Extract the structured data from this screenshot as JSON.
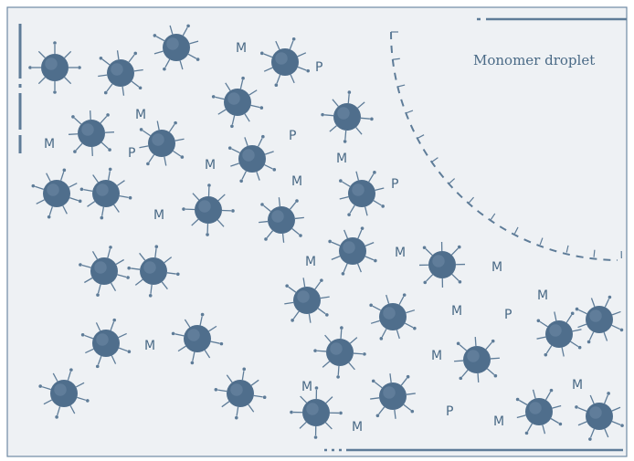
{
  "diagram": {
    "droplet_label": "Monomer droplet",
    "monomer_label": "M",
    "polymer_label": "P",
    "colors": {
      "background": "#eef1f4",
      "border": "#6f8aa3",
      "micelle": "#4f6e8c",
      "stroke": "#5e7c98",
      "label": "#4a6a86"
    }
  }
}
